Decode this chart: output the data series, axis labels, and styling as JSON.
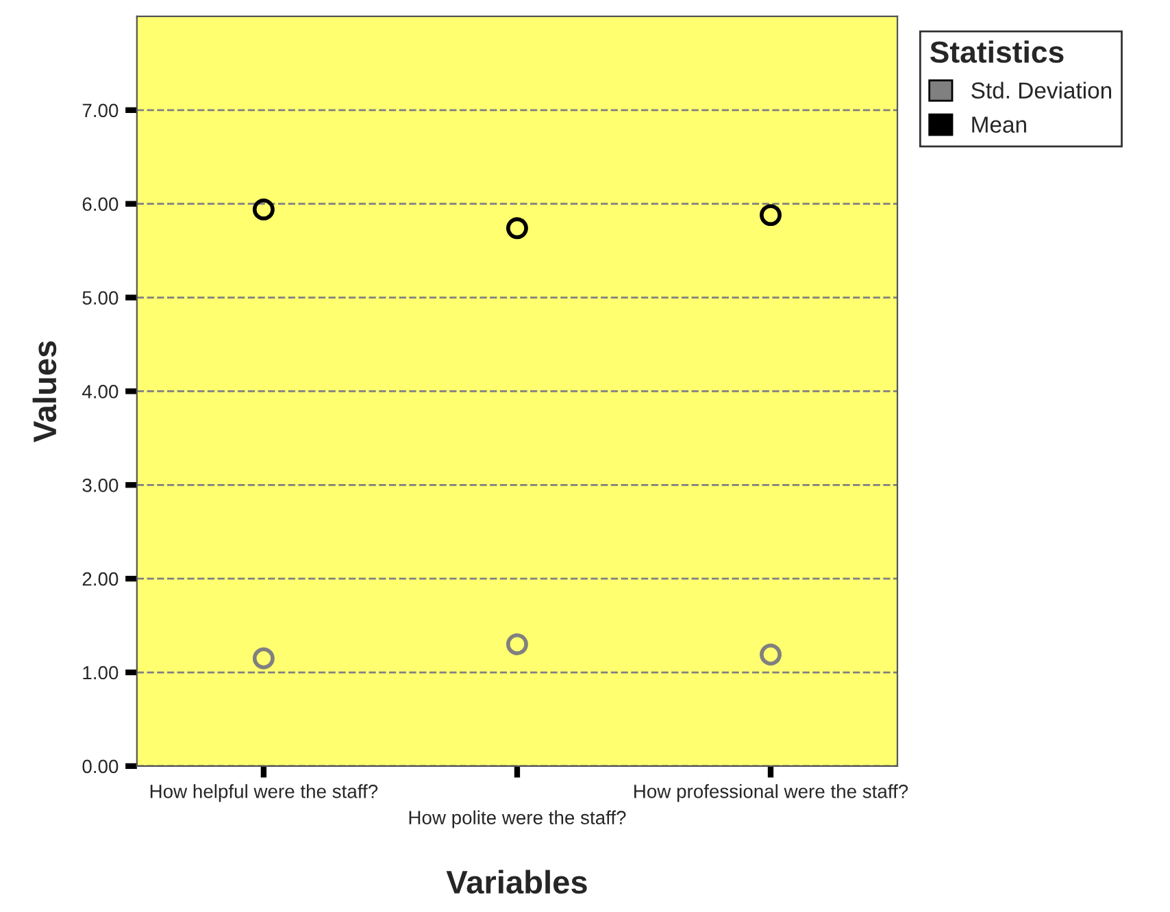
{
  "chart_data": {
    "type": "scatter",
    "xlabel": "Variables",
    "ylabel": "Values",
    "legend_title": "Statistics",
    "categories": [
      "How helpful were the staff?",
      "How polite were the staff?",
      "How professional were the staff?"
    ],
    "series": [
      {
        "name": "Std. Deviation",
        "color": "#808080",
        "values": [
          1.15,
          1.3,
          1.19
        ]
      },
      {
        "name": "Mean",
        "color": "#000000",
        "values": [
          5.94,
          5.74,
          5.88
        ]
      }
    ],
    "ylim": [
      0,
      8.0
    ],
    "yticks": [
      {
        "value": 0,
        "label": "0.00"
      },
      {
        "value": 1,
        "label": "1.00"
      },
      {
        "value": 2,
        "label": "2.00"
      },
      {
        "value": 3,
        "label": "3.00"
      },
      {
        "value": 4,
        "label": "4.00"
      },
      {
        "value": 5,
        "label": "5.00"
      },
      {
        "value": 6,
        "label": "6.00"
      },
      {
        "value": 7,
        "label": "7.00"
      }
    ],
    "grid": "y",
    "legend": "top right",
    "marker": "circle"
  }
}
